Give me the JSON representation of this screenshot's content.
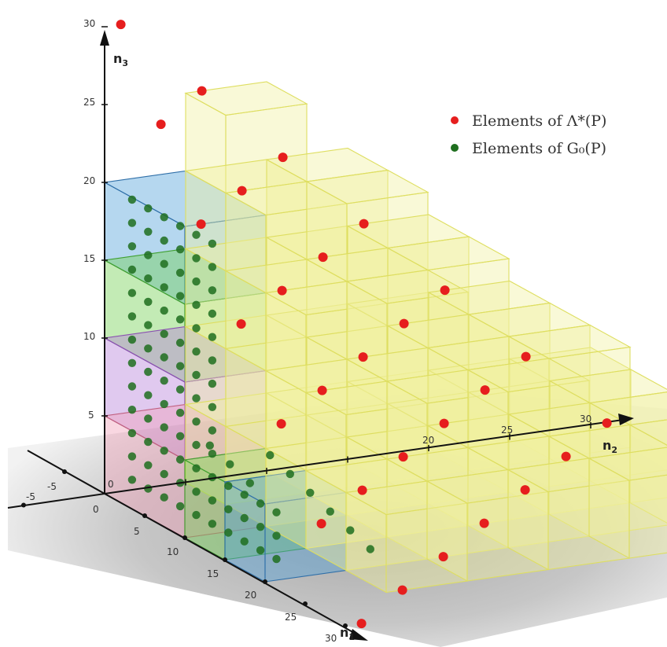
{
  "legend": {
    "red_label": "Elements of Λ*(P)",
    "green_label": "Elements of G₀(P)"
  },
  "axes": {
    "n1": {
      "name": "n",
      "sub": "1",
      "ticks": [
        "0",
        "5",
        "10",
        "15",
        "20",
        "25",
        "30"
      ]
    },
    "n2": {
      "name": "n",
      "sub": "2",
      "ticks": [
        "-5",
        "20",
        "25",
        "30"
      ]
    },
    "n3": {
      "name": "n",
      "sub": "3",
      "ticks": [
        "0",
        "5",
        "10",
        "15",
        "20",
        "25",
        "30"
      ]
    },
    "n1_negative_tick": "-5"
  },
  "colors": {
    "red_dot": "#e61e1e",
    "green_dot": "#1f6f1f",
    "yellow_box": "#f0f0a0",
    "blue_box": "#4f9fd8",
    "green_box": "#6fcf4f",
    "purple_box": "#b57fd9",
    "pink_box": "#f0a0b8",
    "floor": "#a8a8a8"
  }
}
